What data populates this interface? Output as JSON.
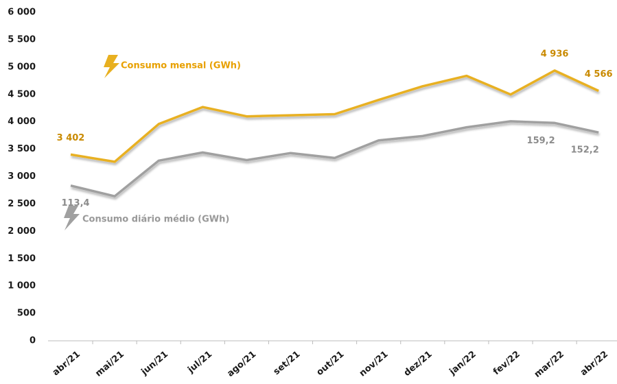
{
  "chart_data": {
    "type": "line",
    "categories": [
      "abr/21",
      "mai/21",
      "jun/21",
      "jul/21",
      "ago/21",
      "set/21",
      "out/21",
      "nov/21",
      "dez/21",
      "jan/22",
      "fev/22",
      "mar/22",
      "abr/22"
    ],
    "series": [
      {
        "name": "Consumo mensal (GWh)",
        "color": "#e8b020",
        "label_color": "#c98a00",
        "values": [
          3402,
          3270,
          3960,
          4270,
          4100,
          4120,
          4140,
          4400,
          4650,
          4840,
          4500,
          4936,
          4566
        ],
        "value_labels": [
          "3 402",
          null,
          null,
          null,
          null,
          null,
          null,
          null,
          null,
          null,
          null,
          "4 936",
          "4 566"
        ]
      },
      {
        "name": "Consumo diário médio (GWh)",
        "color": "#a0a0a0",
        "label_color": "#8c8c8c",
        "axis": "y2",
        "values": [
          113.4,
          105.6,
          131.6,
          137.6,
          132,
          137.2,
          133.6,
          146.4,
          149.6,
          156,
          160.4,
          159.2,
          152.2
        ],
        "value_labels": [
          "113,4",
          null,
          null,
          null,
          null,
          null,
          null,
          null,
          null,
          null,
          null,
          "159,2",
          "152,2"
        ]
      }
    ],
    "ylim": [
      0,
      6000
    ],
    "yticks": [
      0,
      500,
      {
        "value": 1000,
        "label": "1 000"
      },
      {
        "value": 1500,
        "label": "1 500"
      },
      {
        "value": 2000,
        "label": "2 000"
      },
      {
        "value": 2500,
        "label": "2 500"
      },
      {
        "value": 3000,
        "label": "3 000"
      },
      {
        "value": 3500,
        "label": "3 500"
      },
      {
        "value": 4000,
        "label": "4 000"
      },
      {
        "value": 4500,
        "label": "4 500"
      },
      {
        "value": 5000,
        "label": "5 000"
      },
      {
        "value": 5500,
        "label": "5 500"
      },
      {
        "value": 6000,
        "label": "6 000"
      }
    ],
    "y2lim": [
      0,
      240
    ],
    "grid": false
  }
}
